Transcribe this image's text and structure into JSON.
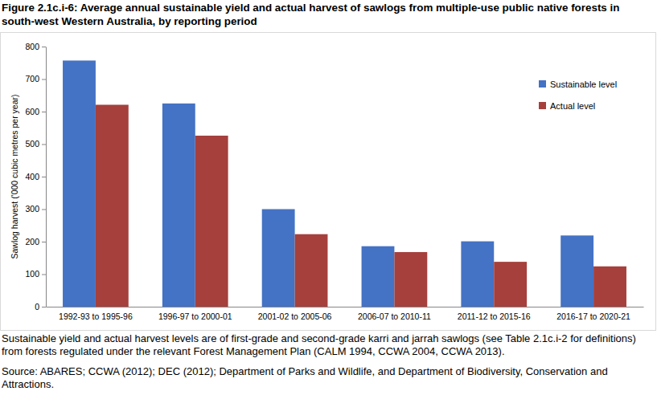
{
  "chart_data": {
    "type": "bar",
    "title": "Figure 2.1c.i-6: Average annual sustainable yield and actual harvest of sawlogs from multiple-use public native forests in south-west Western Australia, by reporting period",
    "y_label": "Sawlog harvest ('000 cubic metres per year)",
    "notes": "Sustainable yield and actual harvest levels are of first-grade and second-grade karri and jarrah sawlogs (see Table 2.1c.i-2 for definitions) from forests regulated under the relevant Forest Management Plan (CALM 1994, CCWA 2004, CCWA 2013).",
    "source": "Source: ABARES; CCWA (2012); DEC (2012); Department of Parks and Wildlife, and Department of Biodiversity, Conservation and Attractions.",
    "categories": [
      "1992-93 to 1995-96",
      "1996-97 to 2000-01",
      "2001-02 to 2005-06",
      "2006-07 to 2010-11",
      "2011-12 to 2015-16",
      "2016-17 to 2020-21"
    ],
    "series": [
      {
        "name": "Sustainable level",
        "color": "#4472c4",
        "values": [
          757,
          625,
          300,
          186,
          201,
          219
        ]
      },
      {
        "name": "Actual level",
        "color": "#a5403d",
        "values": [
          621,
          526,
          223,
          168,
          138,
          124
        ]
      }
    ],
    "ylim": [
      0,
      800
    ],
    "yticks": [
      0,
      100,
      200,
      300,
      400,
      500,
      600,
      700,
      800
    ],
    "grid": false,
    "legend": "top-right"
  }
}
